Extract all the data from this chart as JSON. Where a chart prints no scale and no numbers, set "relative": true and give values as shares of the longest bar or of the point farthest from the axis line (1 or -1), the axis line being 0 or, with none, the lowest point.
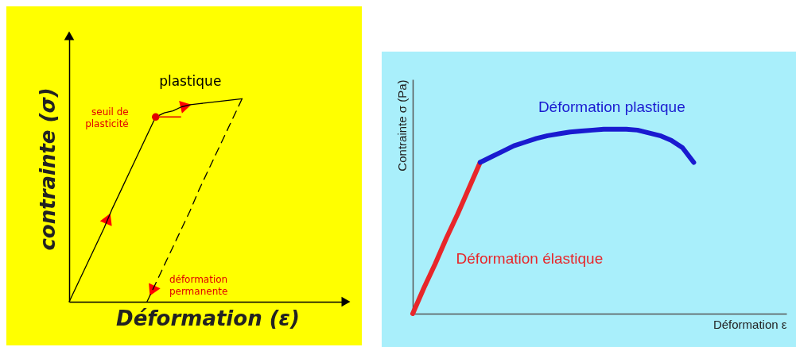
{
  "chart_data": [
    {
      "type": "line",
      "relative": true,
      "xlabel": "Déformation (ε)",
      "ylabel": "contrainte (σ)",
      "categories": [
        null,
        null,
        null,
        null,
        null,
        null,
        null,
        null,
        null,
        null,
        null,
        null,
        null,
        null,
        null,
        null,
        null,
        null,
        null,
        null,
        null
      ],
      "annotations": [
        "plastique",
        "seuil de plasticité",
        "déformation permanente"
      ],
      "series": [
        {
          "color": "#000000",
          "line_style": "solid",
          "values": [
            0,
            0.09,
            0.18,
            0.27,
            0.36,
            0.46,
            0.55,
            0.64,
            0.73,
            0.82,
            0.91,
            0.93,
            0.94,
            0.96,
            0.97,
            0.975,
            0.98,
            0.985,
            0.99,
            0.995,
            1
          ]
        },
        {
          "color": "#000000",
          "line_style": "dashed",
          "values": [
            null,
            null,
            null,
            null,
            null,
            null,
            null,
            null,
            null,
            0,
            0.09,
            0.18,
            0.27,
            0.36,
            0.45,
            0.55,
            0.64,
            0.73,
            0.82,
            0.91,
            1
          ]
        }
      ]
    },
    {
      "type": "line",
      "relative": true,
      "xlabel": "Déformation ε",
      "ylabel": "Contrainte σ (Pa)",
      "categories": [
        null,
        null,
        null,
        null,
        null,
        null,
        null,
        null,
        null,
        null,
        null,
        null,
        null,
        null,
        null,
        null,
        null,
        null,
        null,
        null,
        null,
        null,
        null,
        null,
        null,
        null
      ],
      "series": [
        {
          "name": "Déformation élastique",
          "color": "#e8262a",
          "values": [
            0,
            0.14,
            0.27,
            0.41,
            0.54,
            0.68,
            0.82,
            null,
            null,
            null,
            null,
            null,
            null,
            null,
            null,
            null,
            null,
            null,
            null,
            null,
            null,
            null,
            null,
            null,
            null,
            null
          ]
        },
        {
          "name": "Déformation plastique",
          "color": "#1a1ad0",
          "values": [
            null,
            null,
            null,
            null,
            null,
            null,
            0.82,
            0.85,
            0.88,
            0.91,
            0.93,
            0.95,
            0.965,
            0.975,
            0.985,
            0.99,
            0.995,
            1,
            1,
            1,
            0.995,
            0.98,
            0.965,
            0.94,
            0.9,
            0.82
          ]
        }
      ]
    }
  ]
}
